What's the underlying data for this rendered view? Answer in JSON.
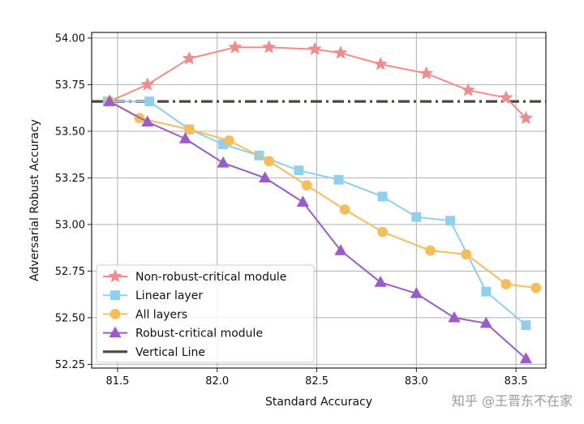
{
  "chart_data": {
    "type": "line",
    "title": "",
    "xlabel": "Standard Accuracy",
    "ylabel": "Adversarial Robust Accuracy",
    "xlim": [
      81.37,
      83.65
    ],
    "ylim": [
      52.23,
      54.03
    ],
    "xticks": [
      81.5,
      82.0,
      82.5,
      83.0,
      83.5
    ],
    "xtick_labels": [
      "81.5",
      "82.0",
      "82.5",
      "83.0",
      "83.5"
    ],
    "yticks": [
      52.25,
      52.5,
      52.75,
      53.0,
      53.25,
      53.5,
      53.75,
      54.0
    ],
    "ytick_labels": [
      "52.25",
      "52.50",
      "52.75",
      "53.00",
      "53.25",
      "53.50",
      "53.75",
      "54.00"
    ],
    "grid": true,
    "legend_position": "bottom-left",
    "series": [
      {
        "name": "Non-robust-critical module",
        "color": "#f08c8c",
        "marker": "star",
        "x": [
          81.46,
          81.65,
          81.86,
          82.09,
          82.26,
          82.49,
          82.62,
          82.82,
          83.05,
          83.26,
          83.45,
          83.55
        ],
        "y": [
          53.66,
          53.75,
          53.89,
          53.95,
          53.95,
          53.94,
          53.92,
          53.86,
          53.81,
          53.72,
          53.68,
          53.57
        ]
      },
      {
        "name": "Linear layer",
        "color": "#8fd0f0",
        "marker": "square",
        "x": [
          81.45,
          81.66,
          81.86,
          82.03,
          82.21,
          82.41,
          82.61,
          82.83,
          83.0,
          83.17,
          83.35,
          83.55
        ],
        "y": [
          53.66,
          53.66,
          53.51,
          53.43,
          53.37,
          53.29,
          53.24,
          53.15,
          53.04,
          53.02,
          52.64,
          52.46
        ]
      },
      {
        "name": "All layers",
        "color": "#f5be5a",
        "marker": "circle",
        "x": [
          81.46,
          81.61,
          81.86,
          82.06,
          82.26,
          82.45,
          82.64,
          82.83,
          83.07,
          83.25,
          83.45,
          83.6
        ],
        "y": [
          53.66,
          53.57,
          53.51,
          53.45,
          53.34,
          53.21,
          53.08,
          52.96,
          52.86,
          52.84,
          52.68,
          52.66
        ]
      },
      {
        "name": "Robust-critical module",
        "color": "#9a5cc8",
        "marker": "triangle",
        "x": [
          81.46,
          81.65,
          81.84,
          82.03,
          82.24,
          82.43,
          82.62,
          82.82,
          83.0,
          83.19,
          83.35,
          83.55
        ],
        "y": [
          53.66,
          53.55,
          53.46,
          53.33,
          53.25,
          53.12,
          52.86,
          52.69,
          52.63,
          52.5,
          52.47,
          52.28
        ]
      }
    ],
    "reference_line": {
      "name": "Vertical Line",
      "color": "#4d4640",
      "style": "dash-dot",
      "y": 53.66
    }
  },
  "watermark": {
    "text": "知乎 @王晋东不在家"
  }
}
